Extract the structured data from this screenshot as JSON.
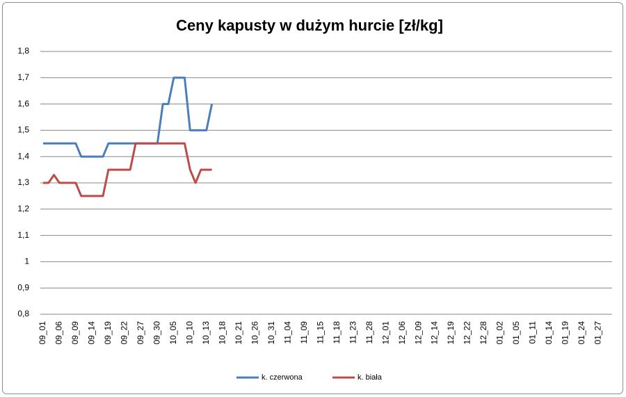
{
  "chart_data": {
    "type": "line",
    "title": "Ceny kapusty w dużym hurcie [zł/kg]",
    "categories": [
      "09_01",
      null,
      null,
      "09_06",
      null,
      null,
      "09_09",
      null,
      null,
      "09_14",
      null,
      null,
      "09_19",
      null,
      null,
      "09_22",
      null,
      null,
      "09_27",
      null,
      null,
      "09_30",
      null,
      null,
      "10_05",
      null,
      null,
      "10_10",
      null,
      null,
      "10_13",
      null,
      null,
      "10_18",
      null,
      null,
      "10_21",
      null,
      null,
      "10_26",
      null,
      null,
      "10_31",
      null,
      null,
      "11_04",
      null,
      null,
      "11_09",
      null,
      null,
      "11_15",
      null,
      null,
      "11_18",
      null,
      null,
      "11_23",
      null,
      null,
      "11_28",
      null,
      null,
      "12_01",
      null,
      null,
      "12_06",
      null,
      null,
      "12_09",
      null,
      null,
      "12_14",
      null,
      null,
      "12_19",
      null,
      null,
      "12_22",
      null,
      null,
      "12_28",
      null,
      null,
      "01_02",
      null,
      null,
      "01_05",
      null,
      null,
      "01_11",
      null,
      null,
      "01_14",
      null,
      null,
      "01_19",
      null,
      null,
      "01_24",
      null,
      null,
      "01_27",
      null,
      null
    ],
    "series": [
      {
        "name": "k. czerwona",
        "color": "#4a7ebb",
        "values": [
          1.45,
          1.45,
          1.45,
          1.45,
          1.45,
          1.45,
          1.45,
          1.4,
          1.4,
          1.4,
          1.4,
          1.4,
          1.45,
          1.45,
          1.45,
          1.45,
          1.45,
          1.45,
          1.45,
          1.45,
          1.45,
          1.45,
          1.6,
          1.6,
          1.7,
          1.7,
          1.7,
          1.5,
          1.5,
          1.5,
          1.5,
          1.6,
          null,
          null,
          null,
          null,
          null,
          null,
          null,
          null,
          null,
          null,
          null,
          null,
          null,
          null,
          null,
          null,
          null,
          null,
          null,
          null,
          null,
          null,
          null,
          null,
          null,
          null,
          null,
          null,
          null,
          null,
          null,
          null,
          null,
          null,
          null,
          null,
          null,
          null,
          null,
          null,
          null,
          null,
          null,
          null,
          null,
          null,
          null,
          null,
          null,
          null,
          null,
          null,
          null,
          null,
          null,
          null,
          null,
          null,
          null,
          null,
          null,
          null,
          null,
          null,
          null,
          null,
          null,
          null,
          null,
          null,
          null,
          null,
          null
        ]
      },
      {
        "name": "k. biała",
        "color": "#be4b48",
        "values": [
          1.3,
          1.3,
          1.33,
          1.3,
          1.3,
          1.3,
          1.3,
          1.25,
          1.25,
          1.25,
          1.25,
          1.25,
          1.35,
          1.35,
          1.35,
          1.35,
          1.35,
          1.45,
          1.45,
          1.45,
          1.45,
          1.45,
          1.45,
          1.45,
          1.45,
          1.45,
          1.45,
          1.35,
          1.3,
          1.35,
          1.35,
          1.35,
          null,
          null,
          null,
          null,
          null,
          null,
          null,
          null,
          null,
          null,
          null,
          null,
          null,
          null,
          null,
          null,
          null,
          null,
          null,
          null,
          null,
          null,
          null,
          null,
          null,
          null,
          null,
          null,
          null,
          null,
          null,
          null,
          null,
          null,
          null,
          null,
          null,
          null,
          null,
          null,
          null,
          null,
          null,
          null,
          null,
          null,
          null,
          null,
          null,
          null,
          null,
          null,
          null,
          null,
          null,
          null,
          null,
          null,
          null,
          null,
          null,
          null,
          null,
          null,
          null,
          null,
          null,
          null,
          null,
          null,
          null,
          null,
          null
        ]
      }
    ],
    "ylim": [
      0.8,
      1.8
    ],
    "yticks": [
      {
        "value": 0.8,
        "label": "0,8"
      },
      {
        "value": 0.9,
        "label": "0,9"
      },
      1,
      {
        "value": 1.1,
        "label": "1,1"
      },
      {
        "value": 1.2,
        "label": "1,2"
      },
      {
        "value": 1.3,
        "label": "1,3"
      },
      {
        "value": 1.4,
        "label": "1,4"
      },
      {
        "value": 1.5,
        "label": "1,5"
      },
      {
        "value": 1.6,
        "label": "1,6"
      },
      {
        "value": 1.7,
        "label": "1,7"
      },
      {
        "value": 1.8,
        "label": "1,8"
      }
    ],
    "grid": true,
    "legend": "bottom"
  }
}
